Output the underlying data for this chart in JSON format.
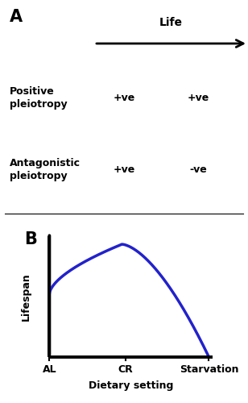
{
  "panel_A_label": "A",
  "panel_B_label": "B",
  "life_arrow_label": "Life",
  "row1_label_line1": "Positive",
  "row1_label_line2": "pleiotropy",
  "row2_label_line1": "Antagonistic",
  "row2_label_line2": "pleiotropy",
  "col1_row1": "+ve",
  "col2_row1": "+ve",
  "col1_row2": "+ve",
  "col2_row2": "-ve",
  "xlabel": "Dietary setting",
  "ylabel": "Lifespan",
  "xtick_labels": [
    "AL",
    "CR",
    "Starvation"
  ],
  "xtick_positions": [
    0.0,
    0.42,
    0.88
  ],
  "curve_color": "#2222cc",
  "curve_linewidth": 2.5,
  "axis_color": "#000000",
  "axis_linewidth": 2.8,
  "label_fontsize": 9,
  "panel_label_fontsize": 15,
  "arrow_label_fontsize": 10
}
